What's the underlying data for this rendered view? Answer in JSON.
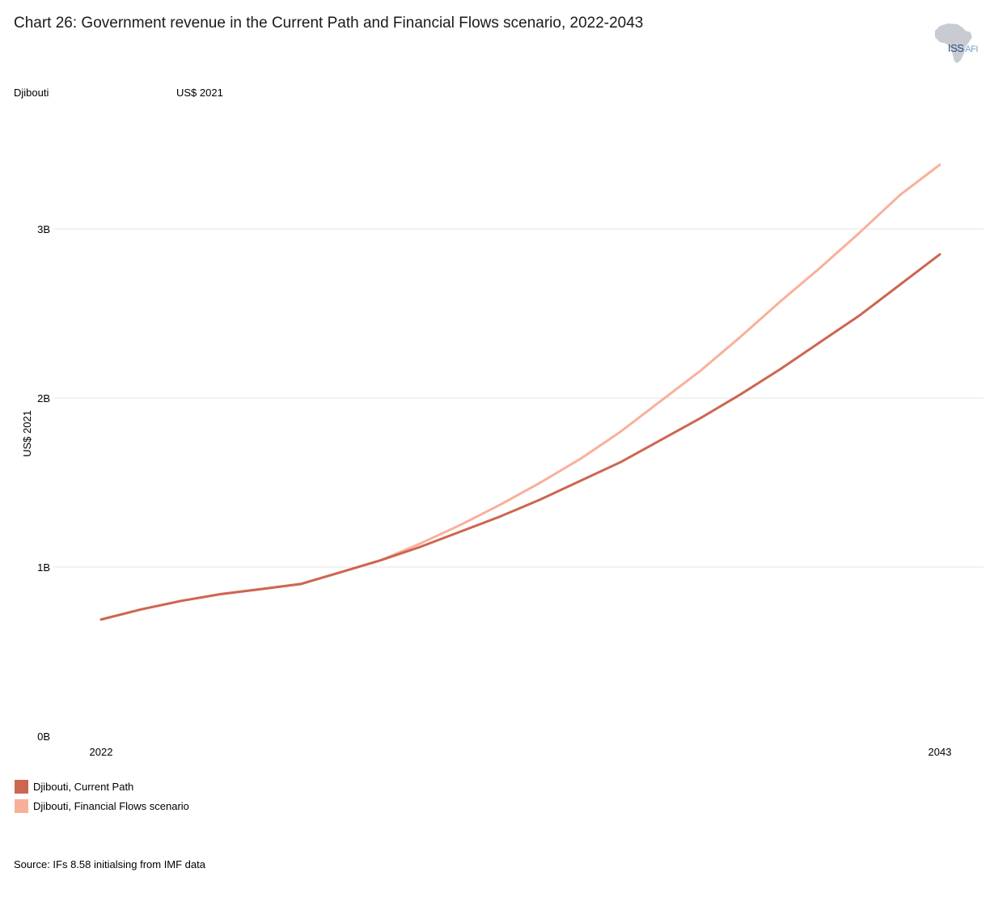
{
  "header": {
    "title": "Chart 26: Government revenue in the Current Path and Financial Flows scenario, 2022-2043",
    "country": "Djibouti",
    "unit": "US$ 2021"
  },
  "logo": {
    "text_main": "ISS",
    "text_sub": "AFI"
  },
  "colors": {
    "current_path": "#cd6651",
    "financial_flows": "#f9b09a",
    "grid": "#e6e6e6"
  },
  "chart_data": {
    "type": "line",
    "ylabel": "US$ 2021",
    "x": [
      2022,
      2023,
      2024,
      2025,
      2026,
      2027,
      2028,
      2029,
      2030,
      2031,
      2032,
      2033,
      2034,
      2035,
      2036,
      2037,
      2038,
      2039,
      2040,
      2041,
      2042,
      2043
    ],
    "x_tick_labels": [
      "2022",
      "2043"
    ],
    "y_ticks": [
      0,
      1,
      2,
      3
    ],
    "y_tick_labels": [
      "0B",
      "1B",
      "2B",
      "3B"
    ],
    "y_unit": "billions",
    "ylim": [
      0,
      3.5
    ],
    "grid": true,
    "legend_position": "bottom-left",
    "series": [
      {
        "name": "Djibouti, Current Path",
        "values": [
          0.69,
          0.75,
          0.8,
          0.84,
          0.87,
          0.9,
          0.97,
          1.04,
          1.12,
          1.21,
          1.3,
          1.4,
          1.51,
          1.62,
          1.75,
          1.88,
          2.02,
          2.17,
          2.33,
          2.49,
          2.67,
          2.85
        ]
      },
      {
        "name": "Djibouti, Financial Flows scenario",
        "values": [
          0.69,
          0.75,
          0.8,
          0.84,
          0.87,
          0.9,
          0.97,
          1.04,
          1.14,
          1.25,
          1.37,
          1.5,
          1.64,
          1.8,
          1.98,
          2.16,
          2.36,
          2.57,
          2.77,
          2.98,
          3.2,
          3.38
        ]
      }
    ]
  },
  "source": "Source: IFs 8.58 initialsing from IMF data"
}
